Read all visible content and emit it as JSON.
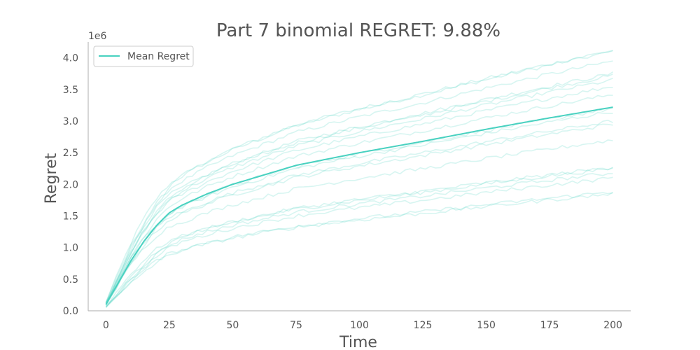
{
  "chart_data": {
    "type": "line",
    "title": "Part 7 binomial REGRET: 9.88%",
    "xlabel": "Time",
    "ylabel": "Regret",
    "y_offset_label": "1e6",
    "xlim": [
      -7,
      207
    ],
    "ylim": [
      0,
      4.25
    ],
    "x_ticks": [
      0,
      25,
      50,
      75,
      100,
      125,
      150,
      175,
      200
    ],
    "x_tick_labels": [
      "0",
      "25",
      "50",
      "75",
      "100",
      "125",
      "150",
      "175",
      "200"
    ],
    "y_ticks": [
      0,
      0.5,
      1.0,
      1.5,
      2.0,
      2.5,
      3.0,
      3.5,
      4.0
    ],
    "y_tick_labels": [
      "0.0",
      "0.5",
      "1.0",
      "1.5",
      "2.0",
      "2.5",
      "3.0",
      "3.5",
      "4.0"
    ],
    "grid": false,
    "legend": {
      "position": "top-left",
      "entries": [
        "Mean Regret"
      ]
    },
    "colors": {
      "mean": "#48d1c0",
      "runs": "#48d1c0"
    },
    "mean_series": {
      "name": "Mean Regret",
      "x": [
        0,
        5,
        10,
        15,
        20,
        25,
        30,
        40,
        50,
        60,
        75,
        100,
        125,
        150,
        175,
        200
      ],
      "y": [
        0.1,
        0.45,
        0.8,
        1.1,
        1.35,
        1.55,
        1.67,
        1.85,
        2.0,
        2.12,
        2.3,
        2.5,
        2.68,
        2.87,
        3.05,
        3.22
      ]
    },
    "run_series_final_values": [
      4.1,
      4.12,
      3.95,
      3.75,
      3.72,
      3.65,
      3.55,
      3.42,
      3.2,
      3.15,
      3.0,
      2.95,
      2.7,
      2.27,
      2.25,
      2.18,
      2.1,
      1.88,
      1.85
    ]
  }
}
